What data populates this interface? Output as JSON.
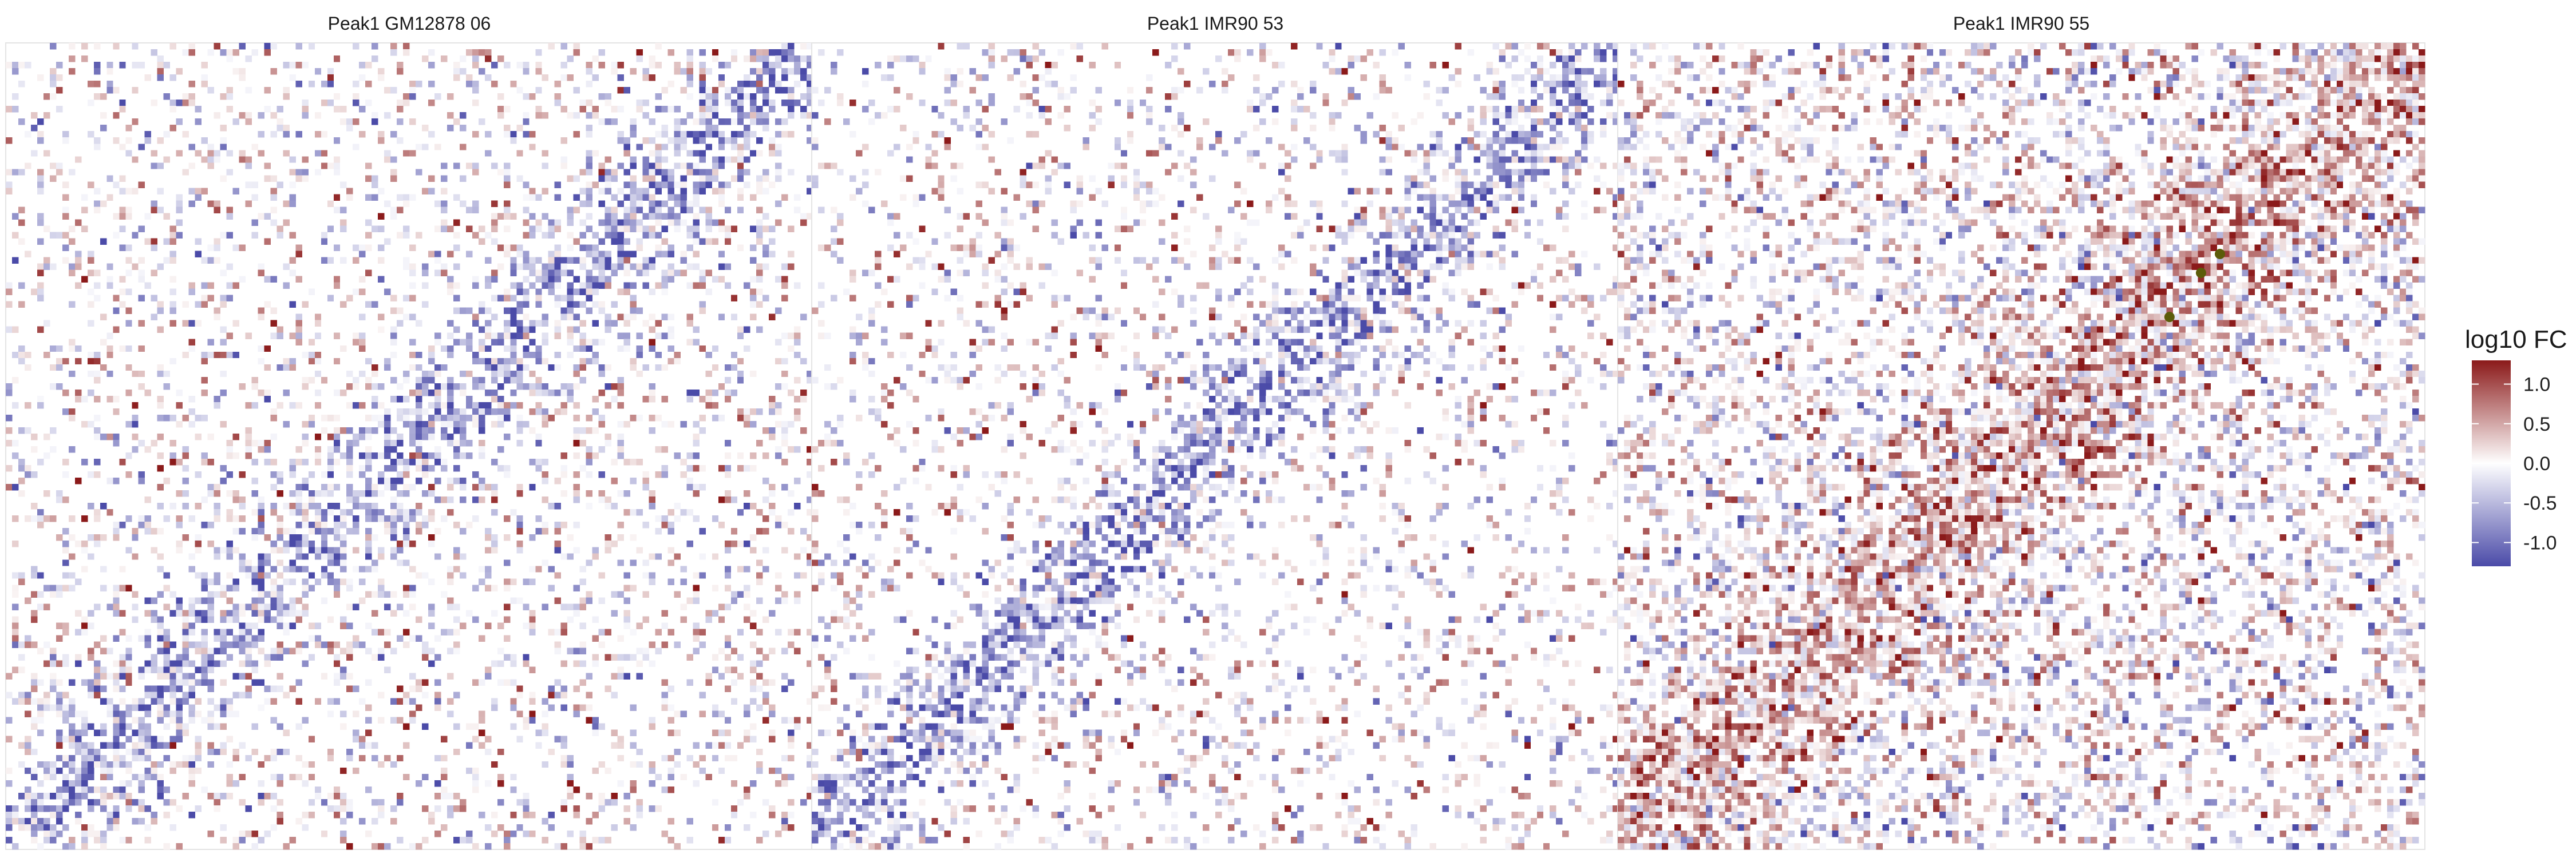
{
  "chart_data": {
    "type": "heatmap",
    "description_of_values": "Each panel is a 128x128 grid of log10 fold-change values (sparse, sampled cells shown as colored tiles).",
    "panels": [
      {
        "title": "Peak1 GM12878 06",
        "diag_strength": -0.55,
        "diag_band": 9,
        "density": 0.3,
        "highlights": []
      },
      {
        "title": "Peak1 IMR90 53",
        "diag_strength": -0.6,
        "diag_band": 8,
        "density": 0.27,
        "highlights": []
      },
      {
        "title": "Peak1 IMR90 55",
        "diag_strength": 0.35,
        "diag_band": 14,
        "density": 0.55,
        "highlights": [
          {
            "row": 33,
            "col": 95
          },
          {
            "row": 36,
            "col": 92
          },
          {
            "row": 43,
            "col": 87
          }
        ]
      }
    ],
    "grid_size": 128,
    "color_scale": {
      "name": "log10 FC",
      "min": -1.3,
      "max": 1.3,
      "low_color": "#4b4ba8",
      "mid_color": "#ffffff",
      "high_color": "#8b1a1a",
      "ticks": [
        1.0,
        0.5,
        0.0,
        -0.5,
        -1.0
      ],
      "tick_labels": [
        "1.0",
        "0.5",
        "0.0",
        "-0.5",
        "-1.0"
      ]
    },
    "highlight_color": "#5c5c0a",
    "grid": false
  }
}
